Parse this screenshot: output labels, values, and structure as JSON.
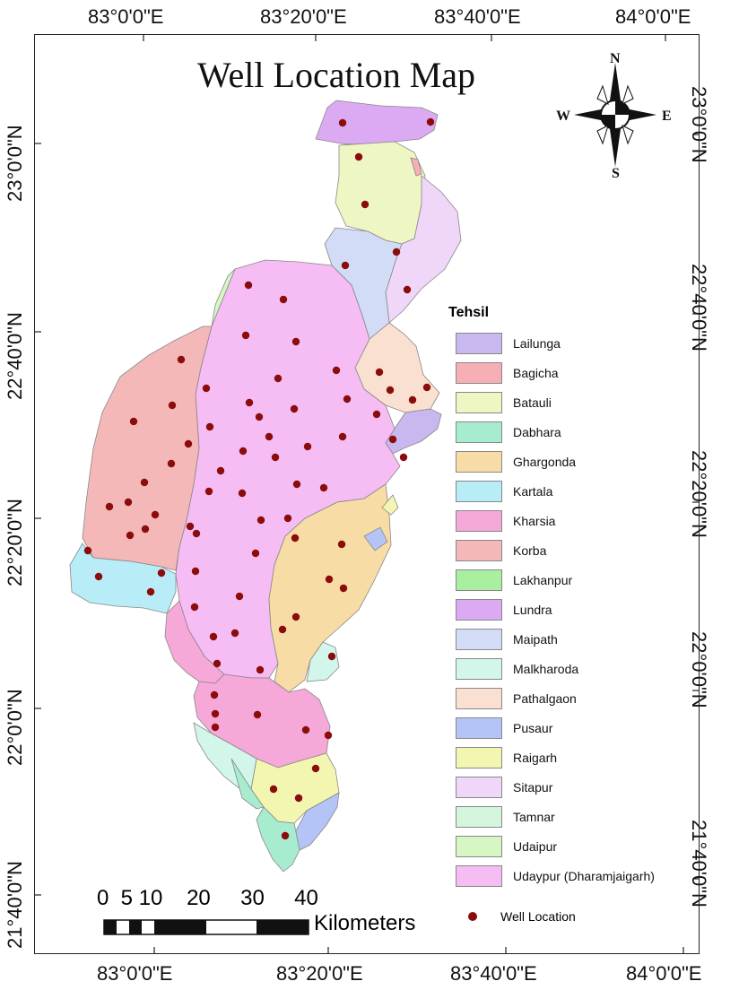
{
  "title": "Well Location Map",
  "grid_labels": {
    "top": [
      "83°0'0\"E",
      "83°20'0\"E",
      "83°40'0\"E",
      "84°0'0\"E"
    ],
    "bottom": [
      "83°0'0\"E",
      "83°20'0\"E",
      "83°40'0\"E",
      "84°0'0\"E"
    ],
    "left": [
      "23°0'0\"N",
      "22°40'0\"N",
      "22°20'0\"N",
      "22°0'0\"N",
      "21°40'0\"N"
    ],
    "right": [
      "23°0'0\"N",
      "22°40'0\"N",
      "22°20'0\"N",
      "22°0'0\"N",
      "21°40'0\"N"
    ]
  },
  "compass": {
    "n": "N",
    "s": "S",
    "e": "E",
    "w": "W"
  },
  "legend": {
    "title": "Tehsil",
    "items": [
      {
        "label": "Lailunga",
        "color": "#c9b8f0"
      },
      {
        "label": "Bagicha",
        "color": "#f7aeb4"
      },
      {
        "label": "Batauli",
        "color": "#eef6c4"
      },
      {
        "label": "Dabhara",
        "color": "#a8ecd0"
      },
      {
        "label": "Ghargonda",
        "color": "#f8dca6"
      },
      {
        "label": "Kartala",
        "color": "#b8ecf6"
      },
      {
        "label": "Kharsia",
        "color": "#f6a8d8"
      },
      {
        "label": "Korba",
        "color": "#f4b8b8"
      },
      {
        "label": "Lakhanpur",
        "color": "#a8f0a0"
      },
      {
        "label": "Lundra",
        "color": "#dcaaf2"
      },
      {
        "label": "Maipath",
        "color": "#d2dcf6"
      },
      {
        "label": "Malkharoda",
        "color": "#d2f6ea"
      },
      {
        "label": "Pathalgaon",
        "color": "#fae0d0"
      },
      {
        "label": "Pusaur",
        "color": "#b4c4f6"
      },
      {
        "label": "Raigarh",
        "color": "#f2f6b0"
      },
      {
        "label": "Sitapur",
        "color": "#f0d6f8"
      },
      {
        "label": "Tamnar",
        "color": "#d4f6dc"
      },
      {
        "label": "Udaipur",
        "color": "#d6f6c4"
      },
      {
        "label": "Udaypur (Dharamjaigarh)",
        "color": "#f6bcf4"
      }
    ],
    "well_label": "Well Location",
    "well_color": "#8b0c0c"
  },
  "scale_bar": {
    "numbers": "0  5 10    20     30     40",
    "units": "Kilometers"
  }
}
